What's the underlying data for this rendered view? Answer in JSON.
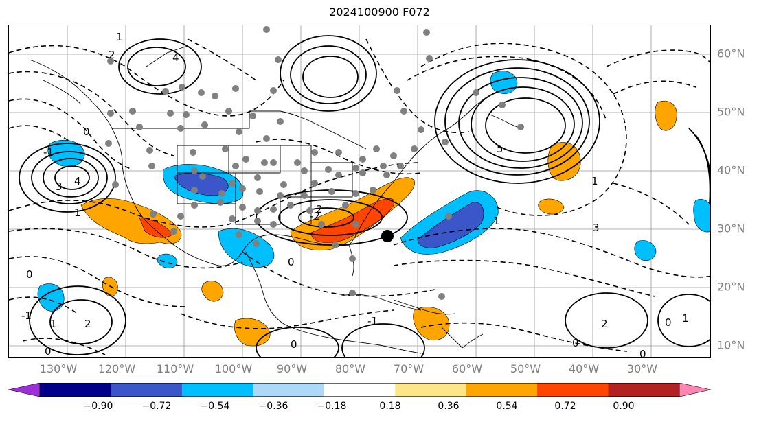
{
  "title": "2024100900 F072",
  "longitude_labels": [
    "130°W",
    "120°W",
    "110°W",
    "100°W",
    "90°W",
    "80°W",
    "70°W",
    "60°W",
    "50°W",
    "40°W",
    "30°W"
  ],
  "latitude_labels": [
    "60°N",
    "50°N",
    "40°N",
    "30°N",
    "20°N",
    "10°N"
  ],
  "colorbar": {
    "ticks": [
      "−0.90",
      "−0.72",
      "−0.54",
      "−0.36",
      "−0.18",
      "0.18",
      "0.36",
      "0.54",
      "0.72",
      "0.90"
    ],
    "colors": [
      "#9b30d9",
      "#00008b",
      "#3a56c8",
      "#00bfff",
      "#add8f7",
      "#ffffff",
      "#fde68a",
      "#ffa500",
      "#ff4500",
      "#b22222",
      "#ff85b3"
    ]
  },
  "contour_labels": [
    "1",
    "2",
    "4",
    "0",
    "-1",
    "3",
    "5",
    "4",
    "2",
    "2",
    "-2",
    "0",
    "1",
    "0",
    "0",
    "-1",
    "1",
    "2",
    "0",
    "1",
    "0",
    "0",
    "1",
    "3",
    "-1",
    "0",
    "1"
  ]
}
